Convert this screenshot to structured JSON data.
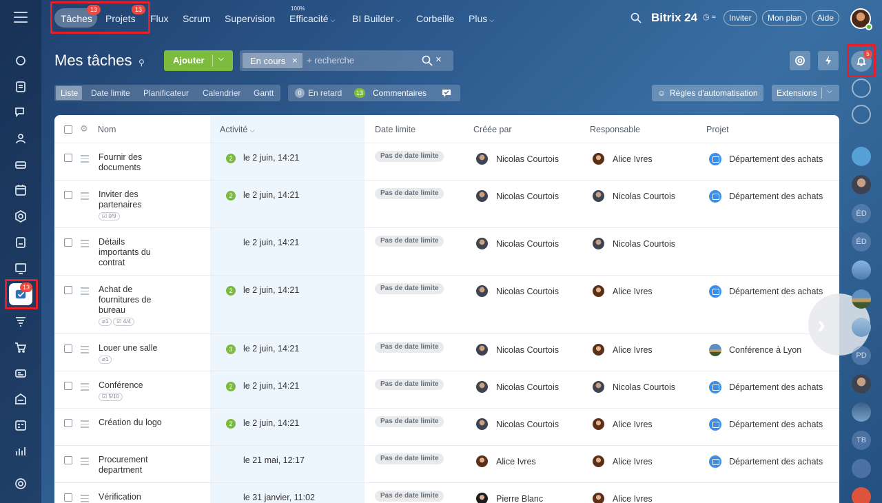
{
  "leftbar": {
    "items": [
      {
        "name": "sidebar-item-feed",
        "icon": "chat-bubble-icon"
      },
      {
        "name": "sidebar-item-docs",
        "icon": "document-icon"
      },
      {
        "name": "sidebar-item-messenger",
        "icon": "messages-icon"
      },
      {
        "name": "sidebar-item-groups",
        "icon": "people-icon"
      },
      {
        "name": "sidebar-item-drive",
        "icon": "drive-icon"
      },
      {
        "name": "sidebar-item-calendar",
        "icon": "calendar-icon"
      },
      {
        "name": "sidebar-item-crm",
        "icon": "hexagon-icon"
      },
      {
        "name": "sidebar-item-sign",
        "icon": "signature-icon"
      },
      {
        "name": "sidebar-item-sites",
        "icon": "sites-icon"
      },
      {
        "name": "sidebar-item-tasks",
        "icon": "tasks-icon"
      },
      {
        "name": "sidebar-item-marketing",
        "icon": "funnel-icon"
      },
      {
        "name": "sidebar-item-shop",
        "icon": "cart-icon"
      },
      {
        "name": "sidebar-item-booking",
        "icon": "booking-icon"
      },
      {
        "name": "sidebar-item-inventory",
        "icon": "warehouse-icon"
      },
      {
        "name": "sidebar-item-timeman",
        "icon": "timesheet-icon"
      },
      {
        "name": "sidebar-item-bi",
        "icon": "bar-chart-icon"
      },
      {
        "name": "sidebar-item-settings",
        "icon": "gear-icon"
      }
    ],
    "tasks_badge": "13"
  },
  "topnav": {
    "tasks": "Tâches",
    "tasks_badge": "13",
    "projects": "Projets",
    "projects_badge": "13",
    "flux": "Flux",
    "scrum": "Scrum",
    "supervision": "Supervision",
    "efficiency_pct": "100%",
    "efficiency": "Efficacité",
    "bi_builder": "BI Builder",
    "trash": "Corbeille",
    "more": "Plus",
    "brand": "Bitrix 24",
    "brand_suffix": "◷ ≈",
    "invite": "Inviter",
    "my_plan": "Mon plan",
    "help": "Aide"
  },
  "header": {
    "title": "Mes tâches",
    "add": "Ajouter",
    "filter_chip": "En cours",
    "search_placeholder": "+ recherche"
  },
  "views": {
    "list": "Liste",
    "deadline": "Date limite",
    "planner": "Planificateur",
    "calendar": "Calendrier",
    "gantt": "Gantt"
  },
  "counters": {
    "overdue_count": "0",
    "overdue": "En retard",
    "comments_count": "13",
    "comments": "Commentaires"
  },
  "automation": "Règles d'automatisation",
  "extensions": "Extensions",
  "table": {
    "headers": {
      "name": "Nom",
      "activity": "Activité",
      "deadline": "Date limite",
      "created_by": "Créée par",
      "responsible": "Responsable",
      "project": "Projet"
    },
    "rows": [
      {
        "name": "Fournir des documents",
        "badge": "2",
        "activity": "le 2 juin, 14:21",
        "deadline": "Pas de date limite",
        "creator": "Nicolas Courtois",
        "responsible": "Alice Ivres",
        "project": "Département des achats"
      },
      {
        "name": "Inviter des partenaires",
        "chips": [
          "☑ 0/9"
        ],
        "badge": "2",
        "activity": "le 2 juin, 14:21",
        "deadline": "Pas de date limite",
        "creator": "Nicolas Courtois",
        "responsible": "Nicolas Courtois",
        "project": "Département des achats"
      },
      {
        "name": "Détails importants du contrat",
        "badge": "",
        "activity": "le 2 juin, 14:21",
        "deadline": "Pas de date limite",
        "creator": "Nicolas Courtois",
        "responsible": "Nicolas Courtois",
        "project": ""
      },
      {
        "name": "Achat de fournitures de bureau",
        "chips": [
          "⌀1",
          "☑ 4/4"
        ],
        "badge": "2",
        "activity": "le 2 juin, 14:21",
        "deadline": "Pas de date limite",
        "creator": "Nicolas Courtois",
        "responsible": "Alice Ivres",
        "project": "Département des achats"
      },
      {
        "name": "Louer une salle",
        "chips": [
          "⌀1"
        ],
        "badge": "3",
        "activity": "le 2 juin, 14:21",
        "deadline": "Pas de date limite",
        "creator": "Nicolas Courtois",
        "responsible": "Alice Ivres",
        "project": "Conférence à Lyon"
      },
      {
        "name": "Conférence",
        "chips": [
          "☑ 5/10"
        ],
        "badge": "2",
        "activity": "le 2 juin, 14:21",
        "deadline": "Pas de date limite",
        "creator": "Nicolas Courtois",
        "responsible": "Nicolas Courtois",
        "project": "Département des achats"
      },
      {
        "name": "Création du logo",
        "badge": "2",
        "activity": "le 2 juin, 14:21",
        "deadline": "Pas de date limite",
        "creator": "Nicolas Courtois",
        "responsible": "Alice Ivres",
        "project": "Département des achats"
      },
      {
        "name": "Procurement department",
        "badge": "",
        "activity": "le 21 mai, 12:17",
        "deadline": "Pas de date limite",
        "creator": "Alice Ivres",
        "responsible": "Alice Ivres",
        "project": "Département des achats"
      },
      {
        "name": "Vérification",
        "badge": "",
        "activity": "le 31 janvier, 11:02",
        "deadline": "Pas de date limite",
        "creator": "Pierre Blanc",
        "responsible": "Alice Ivres",
        "project": ""
      }
    ]
  },
  "rightbar": {
    "notifications_badge": "5",
    "initials": [
      "ÉD",
      "ÉD",
      "PD",
      "TB"
    ]
  }
}
